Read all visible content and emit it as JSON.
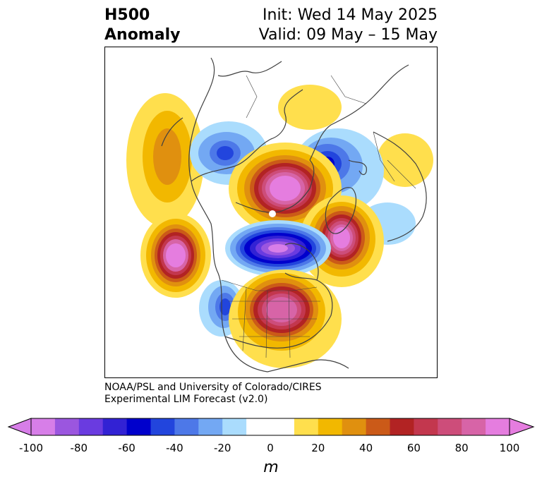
{
  "header": {
    "variable": "H500",
    "field": "Anomaly",
    "init": "Init: Wed 14 May 2025",
    "valid": "Valid: 09 May – 15 May"
  },
  "credit": {
    "line1": "NOAA/PSL and University of Colorado/CIRES",
    "line2": "Experimental LIM Forecast (v2.0)"
  },
  "colorbar": {
    "units": "m",
    "ticks": [
      "-100",
      "-80",
      "-60",
      "-40",
      "-20",
      "0",
      "20",
      "40",
      "60",
      "80",
      "100"
    ],
    "colors": [
      "#d77ee8",
      "#9b56df",
      "#6a3be0",
      "#3222d4",
      "#0000cc",
      "#2245dd",
      "#4d78e8",
      "#73a8f3",
      "#aadcfd",
      "#ffffff",
      "#ffffff",
      "#ffdf4d",
      "#f2b800",
      "#e0900f",
      "#cb5a18",
      "#b22323",
      "#c3374e",
      "#cd4d7a",
      "#d764a7",
      "#e57ddf"
    ],
    "extend_low_color": "#d77ee8",
    "extend_high_color": "#e57ddf"
  },
  "map": {
    "projection": "polar stereographic, North America",
    "anomaly_features": [
      {
        "label": "positive anomaly, Gulf of Alaska / NE Pacific",
        "value_m": 40
      },
      {
        "label": "negative anomaly, eastern Siberia",
        "value_m": -40
      },
      {
        "label": "positive anomaly, Arctic Ocean north of Alaska",
        "value_m": 100
      },
      {
        "label": "negative anomaly, Scandinavia / Barents",
        "value_m": -60
      },
      {
        "label": "negative anomaly, northern Canada / Hudson Bay",
        "value_m": -100
      },
      {
        "label": "positive anomaly, central North Pacific",
        "value_m": 100
      },
      {
        "label": "positive anomaly, Greenland / North Atlantic",
        "value_m": 100
      },
      {
        "label": "positive anomaly, eastern United States",
        "value_m": 100
      },
      {
        "label": "negative anomaly, western United States",
        "value_m": -40
      },
      {
        "label": "positive anomaly, Europe",
        "value_m": 20
      },
      {
        "label": "positive anomaly, Siberia",
        "value_m": 20
      }
    ]
  }
}
